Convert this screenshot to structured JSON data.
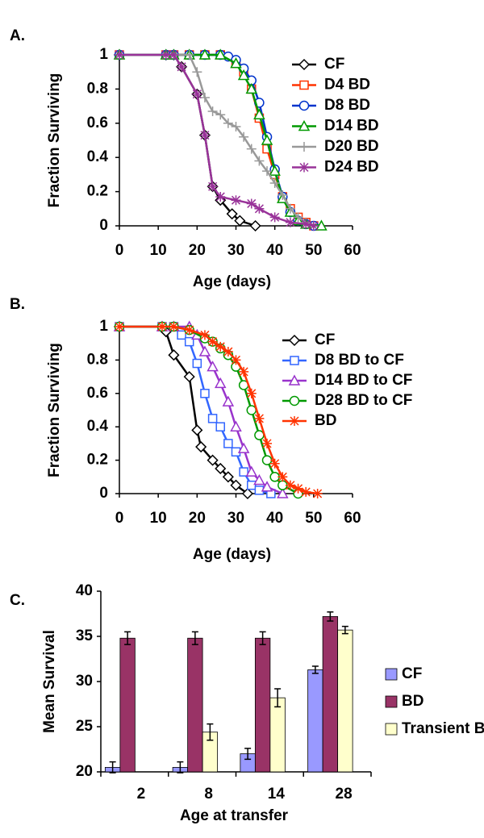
{
  "chart_data": [
    {
      "type": "line",
      "title": "A.",
      "xlabel": "Age (days)",
      "ylabel": "Fraction Surviving",
      "xlim": [
        0,
        60
      ],
      "xticks": [
        0,
        10,
        20,
        30,
        40,
        50,
        60
      ],
      "ylim": [
        0,
        1
      ],
      "yticks": [
        0,
        0.2,
        0.4,
        0.6,
        0.8,
        1
      ],
      "series": [
        {
          "name": "CF",
          "color": "#000000",
          "marker": "diamond",
          "x": [
            0,
            12,
            14,
            16,
            20,
            22,
            24,
            26,
            29,
            31,
            35
          ],
          "values": [
            1,
            1,
            1,
            0.93,
            0.77,
            0.53,
            0.23,
            0.15,
            0.07,
            0.03,
            0
          ]
        },
        {
          "name": "D4 BD",
          "color": "#ff3300",
          "marker": "square",
          "x": [
            0,
            12,
            14,
            18,
            22,
            26,
            30,
            32,
            34,
            36,
            38,
            40,
            42,
            44,
            46,
            48,
            50
          ],
          "values": [
            1,
            1,
            1,
            1,
            1,
            1,
            0.95,
            0.9,
            0.8,
            0.63,
            0.45,
            0.3,
            0.17,
            0.1,
            0.05,
            0.02,
            0
          ]
        },
        {
          "name": "D8 BD",
          "color": "#0033cc",
          "marker": "circle",
          "x": [
            0,
            12,
            14,
            18,
            22,
            26,
            28,
            30,
            32,
            34,
            36,
            38,
            40,
            42,
            44,
            46,
            48,
            50
          ],
          "values": [
            1,
            1,
            1,
            1,
            1,
            1,
            0.99,
            0.97,
            0.92,
            0.85,
            0.72,
            0.52,
            0.33,
            0.17,
            0.08,
            0.03,
            0.01,
            0
          ]
        },
        {
          "name": "D14 BD",
          "color": "#009900",
          "marker": "triangle",
          "x": [
            0,
            12,
            14,
            18,
            22,
            26,
            30,
            32,
            34,
            36,
            38,
            40,
            42,
            44,
            46,
            48,
            52
          ],
          "values": [
            1,
            1,
            1,
            1,
            1,
            1,
            0.95,
            0.88,
            0.8,
            0.65,
            0.5,
            0.32,
            0.16,
            0.08,
            0.03,
            0.01,
            0
          ]
        },
        {
          "name": "D20 BD",
          "color": "#999999",
          "marker": "plus",
          "x": [
            0,
            12,
            14,
            18,
            20,
            22,
            24,
            26,
            28,
            30,
            32,
            34,
            36,
            38,
            40,
            42,
            44,
            46,
            48,
            50
          ],
          "values": [
            1,
            1,
            1,
            1,
            0.9,
            0.75,
            0.67,
            0.65,
            0.6,
            0.58,
            0.52,
            0.45,
            0.38,
            0.32,
            0.25,
            0.18,
            0.1,
            0.05,
            0.02,
            0
          ]
        },
        {
          "name": "D24 BD",
          "color": "#993399",
          "marker": "star",
          "x": [
            0,
            12,
            14,
            16,
            20,
            22,
            24,
            26,
            30,
            34,
            36,
            40,
            44,
            48,
            50
          ],
          "values": [
            1,
            1,
            1,
            0.93,
            0.77,
            0.53,
            0.23,
            0.17,
            0.15,
            0.13,
            0.1,
            0.05,
            0.02,
            0.01,
            0
          ]
        }
      ]
    },
    {
      "type": "line",
      "title": "B.",
      "xlabel": "Age (days)",
      "ylabel": "Fraction Surviving",
      "xlim": [
        0,
        60
      ],
      "xticks": [
        0,
        10,
        20,
        30,
        40,
        50,
        60
      ],
      "ylim": [
        0,
        1
      ],
      "yticks": [
        0,
        0.2,
        0.4,
        0.6,
        0.8,
        1
      ],
      "series": [
        {
          "name": "CF",
          "color": "#000000",
          "marker": "diamond",
          "x": [
            0,
            11,
            12,
            14,
            18,
            20,
            21,
            24,
            26,
            28,
            30,
            33
          ],
          "values": [
            1,
            1,
            0.97,
            0.83,
            0.7,
            0.38,
            0.28,
            0.2,
            0.15,
            0.1,
            0.05,
            0
          ]
        },
        {
          "name": "D8 BD to CF",
          "color": "#3366ff",
          "marker": "square",
          "x": [
            0,
            11,
            14,
            16,
            18,
            20,
            22,
            24,
            26,
            28,
            30,
            32,
            34,
            36,
            39
          ],
          "values": [
            1,
            1,
            1,
            0.95,
            0.91,
            0.78,
            0.6,
            0.45,
            0.4,
            0.3,
            0.25,
            0.13,
            0.05,
            0.02,
            0
          ]
        },
        {
          "name": "D14 BD to CF",
          "color": "#9933cc",
          "marker": "triangle",
          "x": [
            0,
            11,
            14,
            18,
            20,
            22,
            24,
            26,
            28,
            30,
            32,
            34,
            36,
            38,
            42
          ],
          "values": [
            1,
            1,
            1,
            1,
            0.95,
            0.85,
            0.76,
            0.66,
            0.55,
            0.4,
            0.27,
            0.13,
            0.08,
            0.04,
            0
          ]
        },
        {
          "name": "D28 BD to CF",
          "color": "#009900",
          "marker": "circle",
          "x": [
            0,
            11,
            14,
            18,
            22,
            24,
            26,
            28,
            30,
            32,
            34,
            36,
            38,
            40,
            42,
            46
          ],
          "values": [
            1,
            1,
            1,
            0.98,
            0.93,
            0.91,
            0.87,
            0.83,
            0.76,
            0.65,
            0.5,
            0.35,
            0.2,
            0.1,
            0.05,
            0
          ]
        },
        {
          "name": "BD",
          "color": "#ff3300",
          "marker": "star",
          "x": [
            0,
            11,
            14,
            18,
            22,
            24,
            26,
            28,
            30,
            32,
            34,
            36,
            38,
            40,
            42,
            44,
            46,
            48,
            51
          ],
          "values": [
            1,
            1,
            1,
            0.98,
            0.95,
            0.91,
            0.88,
            0.85,
            0.8,
            0.73,
            0.6,
            0.45,
            0.3,
            0.18,
            0.1,
            0.05,
            0.03,
            0.01,
            0
          ]
        }
      ]
    },
    {
      "type": "bar",
      "title": "C.",
      "xlabel": "Age at transfer",
      "ylabel": "Mean Survival",
      "categories": [
        "2",
        "8",
        "14",
        "28"
      ],
      "ylim": [
        20,
        40
      ],
      "yticks": [
        20,
        25,
        30,
        35,
        40
      ],
      "series": [
        {
          "name": "CF",
          "color": "#9999ff",
          "values": [
            20.5,
            20.5,
            22,
            31.3
          ],
          "errors": [
            0.6,
            0.6,
            0.6,
            0.4
          ]
        },
        {
          "name": "BD",
          "color": "#993366",
          "values": [
            34.8,
            34.8,
            34.8,
            37.2
          ],
          "errors": [
            0.7,
            0.7,
            0.7,
            0.5
          ]
        },
        {
          "name": "Transient BD",
          "color": "#ffffcc",
          "values": [
            null,
            24.4,
            28.2,
            35.7
          ],
          "errors": [
            null,
            0.9,
            1.0,
            0.4
          ]
        }
      ]
    }
  ]
}
